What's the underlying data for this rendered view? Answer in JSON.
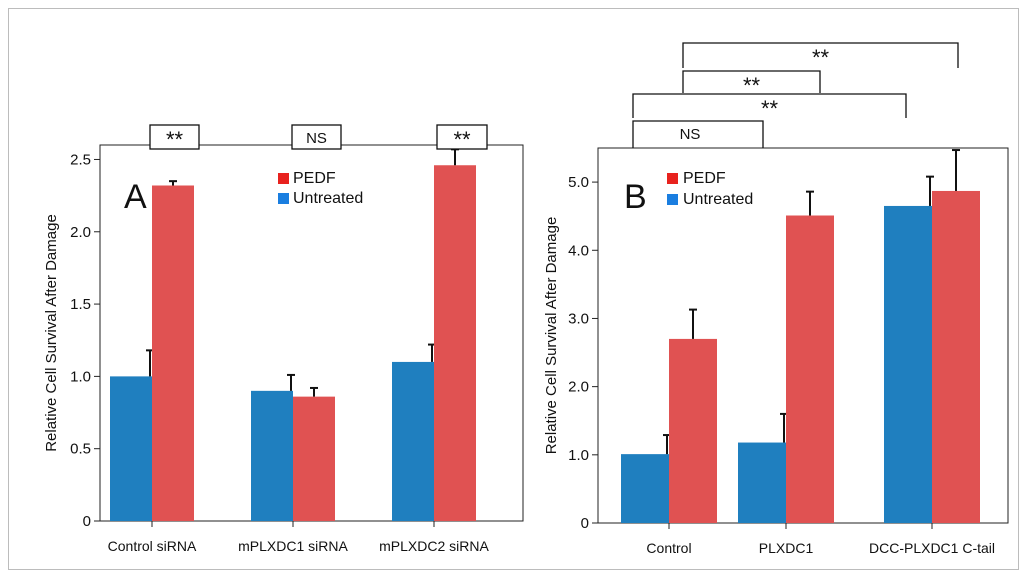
{
  "chart_data": [
    {
      "panel": "A",
      "type": "bar",
      "categories": [
        "Control siRNA",
        "mPLXDC1 siRNA",
        "mPLXDC2 siRNA"
      ],
      "ylabel": "Relative Cell Survival After Damage",
      "xlabel": "",
      "ylim": [
        0,
        2.6
      ],
      "yticks": [
        "0",
        "0.5",
        "1.0",
        "1.5",
        "2.0",
        "2.5"
      ],
      "tick_values": [
        0,
        0.5,
        1.0,
        1.5,
        2.0,
        2.5
      ],
      "series": [
        {
          "name": "Untreated",
          "color": "#1f7fbf",
          "values": [
            1.0,
            0.9,
            1.1
          ],
          "errors": [
            0.18,
            0.11,
            0.12
          ]
        },
        {
          "name": "PEDF",
          "color": "#e05252",
          "values": [
            2.32,
            0.86,
            2.46
          ],
          "errors": [
            0.03,
            0.06,
            0.11
          ]
        }
      ],
      "legend": [
        "PEDF",
        "Untreated"
      ],
      "legend_colors": [
        "#e8221e",
        "#1a7ee0"
      ],
      "legend_position": "top-center",
      "significance": [
        "**",
        "NS",
        "**"
      ]
    },
    {
      "panel": "B",
      "type": "bar",
      "categories": [
        "Control",
        "PLXDC1",
        "DCC-PLXDC1 C-tail"
      ],
      "ylabel": "Relative Cell Survival After Damage",
      "xlabel": "",
      "ylim": [
        0,
        5.5
      ],
      "yticks": [
        "0",
        "1.0",
        "2.0",
        "3.0",
        "4.0",
        "5.0"
      ],
      "tick_values": [
        0,
        1.0,
        2.0,
        3.0,
        4.0,
        5.0
      ],
      "series": [
        {
          "name": "Untreated",
          "color": "#1f7fbf",
          "values": [
            1.01,
            1.18,
            4.65
          ],
          "errors": [
            0.28,
            0.42,
            0.43
          ]
        },
        {
          "name": "PEDF",
          "color": "#e05252",
          "values": [
            2.7,
            4.51,
            4.87
          ],
          "errors": [
            0.43,
            0.35,
            0.6
          ]
        }
      ],
      "legend": [
        "PEDF",
        "Untreated"
      ],
      "legend_colors": [
        "#e8221e",
        "#1a7ee0"
      ],
      "legend_position": "top-center",
      "significance": [
        "**",
        "**",
        "**",
        "NS"
      ]
    }
  ]
}
